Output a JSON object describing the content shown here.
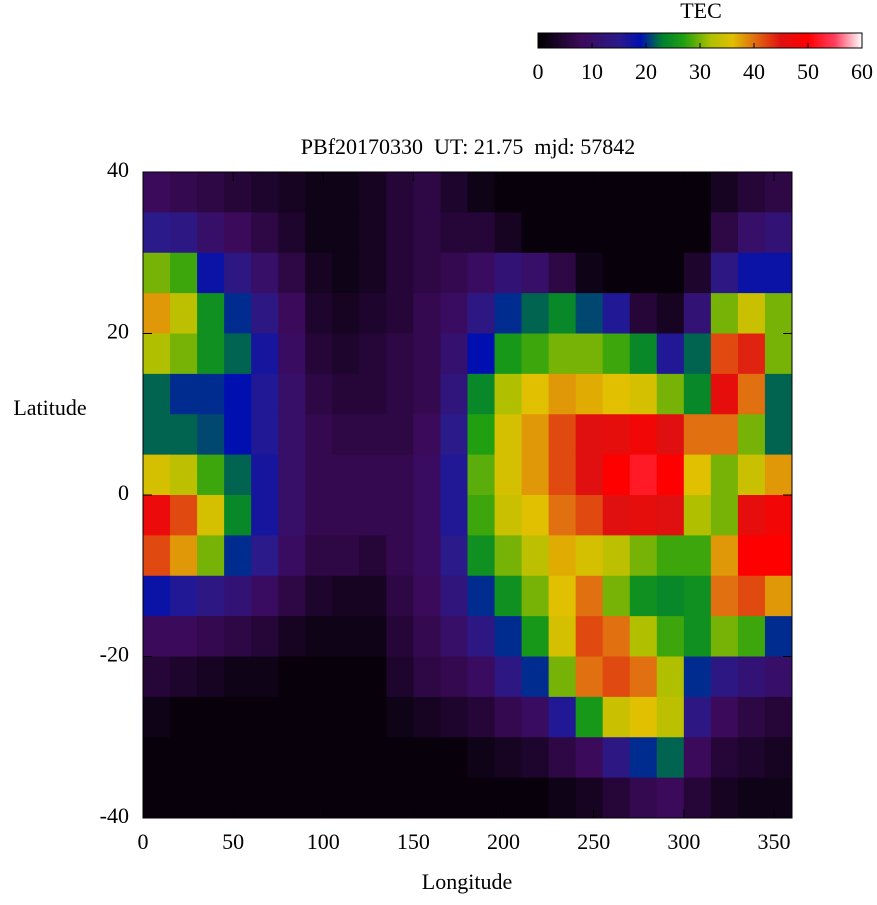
{
  "chart_data": {
    "type": "heatmap",
    "title": "PBf20170330  UT: 21.75  mjd: 57842",
    "xlabel": "Longitude",
    "ylabel": "Latitude",
    "colorbar_label": "TEC",
    "xlim": [
      0,
      360
    ],
    "xticks": [
      0,
      50,
      100,
      150,
      200,
      250,
      300,
      350
    ],
    "ylim": [
      -40,
      40
    ],
    "yticks": [
      -40,
      -20,
      0,
      20,
      40
    ],
    "clim": [
      0,
      60
    ],
    "cticks": [
      0,
      10,
      20,
      30,
      40,
      50,
      60
    ],
    "colorscale": [
      [
        0,
        "#000000"
      ],
      [
        8,
        "#3c0a5a"
      ],
      [
        15,
        "#2a1a8a"
      ],
      [
        19,
        "#0010b0"
      ],
      [
        23,
        "#008030"
      ],
      [
        27,
        "#20a010"
      ],
      [
        32,
        "#b0c000"
      ],
      [
        36,
        "#e0c000"
      ],
      [
        40,
        "#e07010"
      ],
      [
        45,
        "#e01010"
      ],
      [
        50,
        "#ff0000"
      ],
      [
        55,
        "#ff4060"
      ],
      [
        60,
        "#ffffff"
      ]
    ],
    "x": [
      7.5,
      22.5,
      37.5,
      52.5,
      67.5,
      82.5,
      97.5,
      112.5,
      127.5,
      142.5,
      157.5,
      172.5,
      187.5,
      202.5,
      217.5,
      232.5,
      247.5,
      262.5,
      277.5,
      292.5,
      307.5,
      322.5,
      337.5,
      352.5
    ],
    "y": [
      37.5,
      32.5,
      27.5,
      22.5,
      17.5,
      12.5,
      7.5,
      2.5,
      -2.5,
      -7.5,
      -12.5,
      -17.5,
      -22.5,
      -27.5,
      -32.5,
      -37.5
    ],
    "z": [
      [
        8,
        7,
        6,
        5,
        4,
        3,
        2,
        2,
        3,
        5,
        6,
        4,
        2,
        1,
        1,
        1,
        1,
        1,
        1,
        1,
        1,
        3,
        5,
        6
      ],
      [
        15,
        14,
        10,
        8,
        6,
        4,
        2,
        2,
        3,
        5,
        6,
        5,
        5,
        3,
        1,
        1,
        1,
        1,
        1,
        1,
        1,
        6,
        10,
        12
      ],
      [
        30,
        28,
        18,
        14,
        10,
        6,
        3,
        2,
        3,
        5,
        6,
        7,
        9,
        12,
        10,
        6,
        2,
        1,
        1,
        1,
        4,
        14,
        18,
        18
      ],
      [
        38,
        33,
        25,
        20,
        14,
        8,
        4,
        3,
        4,
        5,
        7,
        9,
        14,
        20,
        22,
        24,
        21,
        16,
        5,
        3,
        12,
        30,
        34,
        30
      ],
      [
        32,
        30,
        25,
        22,
        17,
        9,
        5,
        4,
        5,
        6,
        7,
        11,
        19,
        26,
        28,
        30,
        30,
        28,
        24,
        16,
        22,
        42,
        44,
        30
      ],
      [
        22,
        20,
        20,
        19,
        16,
        10,
        6,
        5,
        5,
        6,
        7,
        13,
        24,
        32,
        36,
        38,
        37,
        36,
        35,
        30,
        24,
        46,
        40,
        22
      ],
      [
        22,
        22,
        21,
        19,
        16,
        10,
        7,
        6,
        6,
        6,
        8,
        15,
        27,
        35,
        38,
        42,
        45,
        46,
        48,
        45,
        40,
        40,
        30,
        22
      ],
      [
        35,
        33,
        28,
        22,
        17,
        10,
        7,
        7,
        7,
        7,
        9,
        16,
        29,
        35,
        38,
        42,
        45,
        50,
        52,
        50,
        36,
        30,
        34,
        38
      ],
      [
        47,
        42,
        35,
        24,
        17,
        10,
        7,
        7,
        7,
        7,
        9,
        16,
        28,
        34,
        36,
        40,
        42,
        45,
        46,
        45,
        32,
        30,
        46,
        48
      ],
      [
        42,
        38,
        30,
        20,
        15,
        9,
        6,
        6,
        5,
        7,
        9,
        15,
        25,
        30,
        33,
        37,
        35,
        33,
        30,
        28,
        28,
        38,
        50,
        50
      ],
      [
        18,
        16,
        14,
        12,
        9,
        6,
        4,
        3,
        3,
        6,
        8,
        13,
        20,
        25,
        30,
        36,
        40,
        30,
        25,
        24,
        25,
        40,
        42,
        38
      ],
      [
        8,
        8,
        7,
        6,
        5,
        3,
        2,
        2,
        2,
        5,
        7,
        10,
        14,
        20,
        26,
        35,
        42,
        40,
        32,
        28,
        25,
        30,
        28,
        20
      ],
      [
        5,
        4,
        3,
        2,
        2,
        1,
        1,
        1,
        1,
        4,
        6,
        7,
        9,
        14,
        20,
        30,
        40,
        42,
        40,
        32,
        20,
        14,
        12,
        10
      ],
      [
        2,
        1,
        1,
        1,
        1,
        1,
        1,
        1,
        1,
        2,
        3,
        4,
        5,
        7,
        9,
        16,
        26,
        34,
        36,
        33,
        14,
        8,
        6,
        5
      ],
      [
        1,
        1,
        1,
        1,
        1,
        1,
        1,
        1,
        1,
        1,
        1,
        1,
        2,
        3,
        4,
        6,
        8,
        14,
        20,
        22,
        8,
        5,
        4,
        3
      ],
      [
        1,
        1,
        1,
        1,
        1,
        1,
        1,
        1,
        1,
        1,
        1,
        1,
        1,
        1,
        1,
        2,
        3,
        5,
        7,
        8,
        5,
        3,
        2,
        2
      ]
    ]
  }
}
